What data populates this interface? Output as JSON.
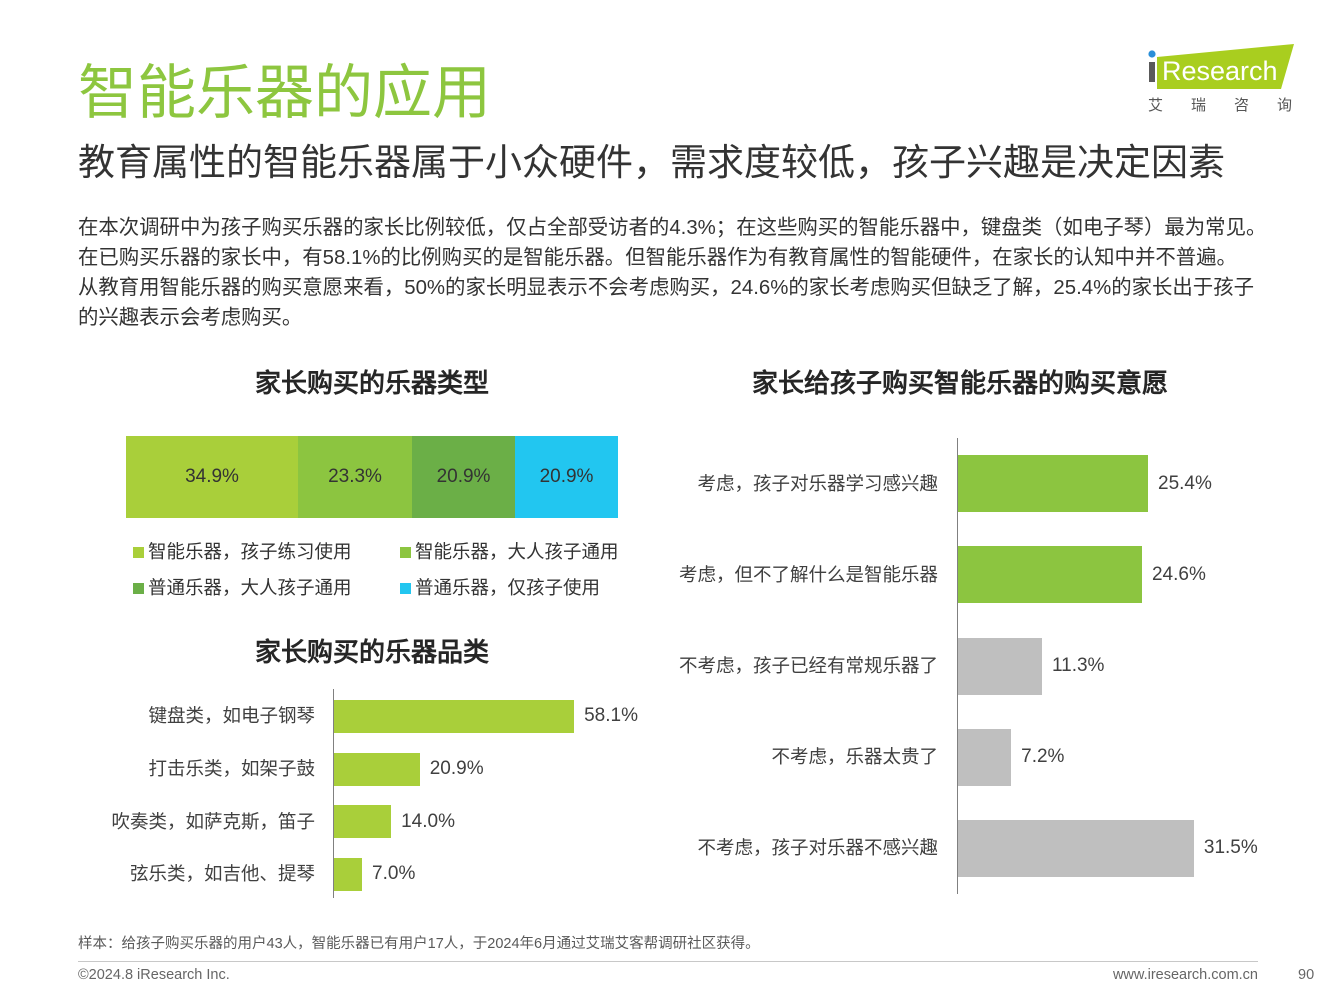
{
  "header": {
    "title": "智能乐器的应用",
    "subtitle": "教育属性的智能乐器属于小众硬件，需求度较低，孩子兴趣是决定因素"
  },
  "logo": {
    "wordmark": "Research",
    "tagline": "艾瑞咨询",
    "color": "#A9CE1F",
    "dot_color": "#2A8FD8"
  },
  "summary": {
    "lines": [
      "在本次调研中为孩子购买乐器的家长比例较低，仅占全部受访者的4.3%；在这些购买的智能乐器中，键盘类（如电子琴）最为常见。",
      "在已购买乐器的家长中，有58.1%的比例购买的是智能乐器。但智能乐器作为有教育属性的智能硬件，在家长的认知中并不普遍。",
      "从教育用智能乐器的购买意愿来看，50%的家长明显表示不会考虑购买，24.6%的家长考虑购买但缺乏了解，25.4%的家长出于孩子",
      "的兴趣表示会考虑购买。"
    ]
  },
  "chart_data": [
    {
      "type": "bar",
      "orientation": "horizontal",
      "stacked": true,
      "title": "家长购买的乐器类型",
      "unit": "%",
      "categories": [
        "智能乐器，孩子练习使用",
        "智能乐器，大人孩子通用",
        "普通乐器，大人孩子通用",
        "普通乐器，仅孩子使用"
      ],
      "values": [
        34.9,
        23.3,
        20.9,
        20.9
      ],
      "colors": [
        "#A9CF3A",
        "#8CC540",
        "#6BAF47",
        "#22C6F0"
      ],
      "legend": "bottom",
      "grid": false
    },
    {
      "type": "bar",
      "orientation": "horizontal",
      "title": "家长购买的乐器品类",
      "unit": "%",
      "categories": [
        "键盘类，如电子钢琴",
        "打击乐类，如架子鼓",
        "吹奏类，如萨克斯，笛子",
        "弦乐类，如吉他、提琴"
      ],
      "values": [
        58.1,
        20.9,
        14.0,
        7.0
      ],
      "colors": [
        "#A9CF3A",
        "#A9CF3A",
        "#A9CF3A",
        "#A9CF3A"
      ],
      "grid": false
    },
    {
      "type": "bar",
      "orientation": "horizontal",
      "title": "家长给孩子购买智能乐器的购买意愿",
      "unit": "%",
      "categories": [
        "考虑，孩子对乐器学习感兴趣",
        "考虑，但不了解什么是智能乐器",
        "不考虑，孩子已经有常规乐器了",
        "不考虑，乐器太贵了",
        "不考虑，孩子对乐器不感兴趣"
      ],
      "values": [
        25.4,
        24.6,
        11.3,
        7.2,
        31.5
      ],
      "colors": [
        "#8CC540",
        "#8CC540",
        "#BFBFBF",
        "#BFBFBF",
        "#BFBFBF"
      ],
      "grid": false
    }
  ],
  "footer": {
    "note": "样本：给孩子购买乐器的用户43人，智能乐器已有用户17人，于2024年6月通过艾瑞艾客帮调研社区获得。",
    "copyright": "©2024.8 iResearch Inc.",
    "website": "www.iresearch.com.cn",
    "page_number": "90"
  },
  "theme": {
    "accent": "#8DC63F",
    "text": "#333333",
    "muted": "#666666"
  }
}
